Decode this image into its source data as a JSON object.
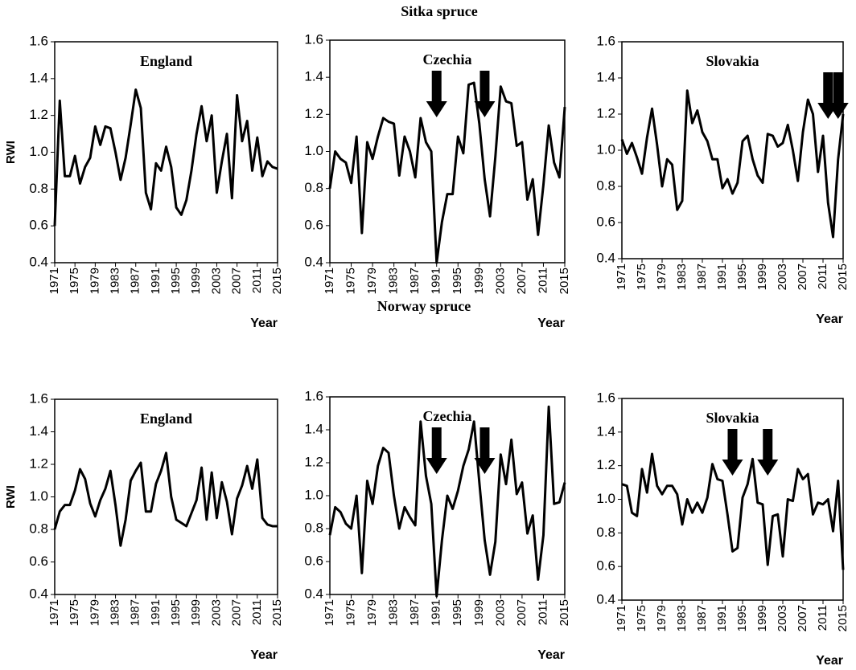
{
  "group_titles": [
    "Sitka spruce",
    "Norway spruce"
  ],
  "chart_data": [
    {
      "type": "line",
      "title": "England",
      "ylabel": "RWI",
      "xlabel": "Year",
      "color": "#000000",
      "x": [
        1971,
        1972,
        1973,
        1974,
        1975,
        1976,
        1977,
        1978,
        1979,
        1980,
        1981,
        1982,
        1983,
        1984,
        1985,
        1986,
        1987,
        1988,
        1989,
        1990,
        1991,
        1992,
        1993,
        1994,
        1995,
        1996,
        1997,
        1998,
        1999,
        2000,
        2001,
        2002,
        2003,
        2004,
        2005,
        2006,
        2007,
        2008,
        2009,
        2010,
        2011,
        2012,
        2013,
        2014,
        2015
      ],
      "values": [
        0.6,
        1.28,
        0.87,
        0.87,
        0.98,
        0.83,
        0.92,
        0.97,
        1.14,
        1.04,
        1.14,
        1.13,
        1.0,
        0.85,
        0.97,
        1.15,
        1.34,
        1.24,
        0.78,
        0.69,
        0.94,
        0.9,
        1.03,
        0.92,
        0.7,
        0.66,
        0.74,
        0.9,
        1.1,
        1.25,
        1.06,
        1.2,
        0.78,
        0.95,
        1.1,
        0.75,
        1.31,
        1.06,
        1.17,
        0.9,
        1.08,
        0.87,
        0.95,
        0.92,
        0.91
      ],
      "xlim": [
        1971,
        2015
      ],
      "xticks": [
        1971,
        1975,
        1979,
        1983,
        1987,
        1991,
        1995,
        1999,
        2003,
        2007,
        2011,
        2015
      ],
      "ylim": [
        0.4,
        1.6
      ],
      "yticks": [
        0.4,
        0.6,
        0.8,
        {
          "value": 1,
          "label": "1.0"
        },
        1.2,
        1.4,
        1.6
      ],
      "arrows": []
    },
    {
      "type": "line",
      "title": "Czechia",
      "xlabel": "Year",
      "color": "#000000",
      "x": [
        1971,
        1972,
        1973,
        1974,
        1975,
        1976,
        1977,
        1978,
        1979,
        1980,
        1981,
        1982,
        1983,
        1984,
        1985,
        1986,
        1987,
        1988,
        1989,
        1990,
        1991,
        1992,
        1993,
        1994,
        1995,
        1996,
        1997,
        1998,
        1999,
        2000,
        2001,
        2002,
        2003,
        2004,
        2005,
        2006,
        2007,
        2008,
        2009,
        2010,
        2011,
        2012,
        2013,
        2014,
        2015
      ],
      "values": [
        0.8,
        1.0,
        0.96,
        0.94,
        0.83,
        1.08,
        0.56,
        1.05,
        0.96,
        1.08,
        1.18,
        1.16,
        1.15,
        0.87,
        1.08,
        1.0,
        0.86,
        1.18,
        1.05,
        1.0,
        0.4,
        0.62,
        0.77,
        0.77,
        1.08,
        0.99,
        1.36,
        1.37,
        1.15,
        0.85,
        0.65,
        0.97,
        1.35,
        1.27,
        1.26,
        1.03,
        1.05,
        0.74,
        0.85,
        0.55,
        0.82,
        1.14,
        0.94,
        0.86,
        1.24
      ],
      "xlim": [
        1971,
        2015
      ],
      "xticks": [
        1971,
        1975,
        1979,
        1983,
        1987,
        1991,
        1995,
        1999,
        2003,
        2007,
        2011,
        2015
      ],
      "ylim": [
        0.4,
        1.6
      ],
      "yticks": [
        0.4,
        0.6,
        0.8,
        {
          "value": 1,
          "label": "1.0"
        },
        1.2,
        1.4,
        1.6
      ],
      "arrows": [
        1991,
        2000
      ]
    },
    {
      "type": "line",
      "title": "Slovakia",
      "xlabel": "Year",
      "color": "#000000",
      "x": [
        1971,
        1972,
        1973,
        1974,
        1975,
        1976,
        1977,
        1978,
        1979,
        1980,
        1981,
        1982,
        1983,
        1984,
        1985,
        1986,
        1987,
        1988,
        1989,
        1990,
        1991,
        1992,
        1993,
        1994,
        1995,
        1996,
        1997,
        1998,
        1999,
        2000,
        2001,
        2002,
        2003,
        2004,
        2005,
        2006,
        2007,
        2008,
        2009,
        2010,
        2011,
        2012,
        2013,
        2014,
        2015
      ],
      "values": [
        1.06,
        0.98,
        1.04,
        0.96,
        0.87,
        1.07,
        1.23,
        1.03,
        0.8,
        0.95,
        0.92,
        0.67,
        0.72,
        1.33,
        1.15,
        1.22,
        1.1,
        1.05,
        0.95,
        0.95,
        0.79,
        0.84,
        0.76,
        0.82,
        1.05,
        1.08,
        0.95,
        0.86,
        0.82,
        1.09,
        1.08,
        1.02,
        1.04,
        1.14,
        1.0,
        0.83,
        1.1,
        1.28,
        1.2,
        0.88,
        1.08,
        0.71,
        0.52,
        0.95,
        1.2
      ],
      "xlim": [
        1971,
        2015
      ],
      "xticks": [
        1971,
        1975,
        1979,
        1983,
        1987,
        1991,
        1995,
        1999,
        2003,
        2007,
        2011,
        2015
      ],
      "ylim": [
        0.4,
        1.6
      ],
      "yticks": [
        0.4,
        0.6,
        0.8,
        {
          "value": 1,
          "label": "1.0"
        },
        1.2,
        1.4,
        1.6
      ],
      "arrows": [
        2012,
        2014
      ]
    },
    {
      "type": "line",
      "title": "England",
      "ylabel": "RWI",
      "xlabel": "Year",
      "color": "#000000",
      "x": [
        1971,
        1972,
        1973,
        1974,
        1975,
        1976,
        1977,
        1978,
        1979,
        1980,
        1981,
        1982,
        1983,
        1984,
        1985,
        1986,
        1987,
        1988,
        1989,
        1990,
        1991,
        1992,
        1993,
        1994,
        1995,
        1996,
        1997,
        1998,
        1999,
        2000,
        2001,
        2002,
        2003,
        2004,
        2005,
        2006,
        2007,
        2008,
        2009,
        2010,
        2011,
        2012,
        2013,
        2014,
        2015
      ],
      "values": [
        0.8,
        0.91,
        0.95,
        0.95,
        1.04,
        1.17,
        1.11,
        0.96,
        0.88,
        0.98,
        1.05,
        1.16,
        0.95,
        0.7,
        0.86,
        1.1,
        1.16,
        1.21,
        0.91,
        0.91,
        1.08,
        1.16,
        1.27,
        1.0,
        0.86,
        0.84,
        0.82,
        0.9,
        0.98,
        1.18,
        0.86,
        1.15,
        0.87,
        1.09,
        0.97,
        0.77,
        0.99,
        1.07,
        1.19,
        1.05,
        1.23,
        0.87,
        0.83,
        0.82,
        0.82
      ],
      "xlim": [
        1971,
        2015
      ],
      "xticks": [
        1971,
        1975,
        1979,
        1983,
        1987,
        1991,
        1995,
        1999,
        2003,
        2007,
        2011,
        2015
      ],
      "ylim": [
        0.4,
        1.6
      ],
      "yticks": [
        0.4,
        0.6,
        0.8,
        {
          "value": 1,
          "label": "1.0"
        },
        1.2,
        1.4,
        1.6
      ],
      "arrows": []
    },
    {
      "type": "line",
      "title": "Czechia",
      "xlabel": "Year",
      "color": "#000000",
      "x": [
        1971,
        1972,
        1973,
        1974,
        1975,
        1976,
        1977,
        1978,
        1979,
        1980,
        1981,
        1982,
        1983,
        1984,
        1985,
        1986,
        1987,
        1988,
        1989,
        1990,
        1991,
        1992,
        1993,
        1994,
        1995,
        1996,
        1997,
        1998,
        1999,
        2000,
        2001,
        2002,
        2003,
        2004,
        2005,
        2006,
        2007,
        2008,
        2009,
        2010,
        2011,
        2012,
        2013,
        2014,
        2015
      ],
      "values": [
        0.76,
        0.93,
        0.9,
        0.83,
        0.8,
        1.0,
        0.53,
        1.09,
        0.95,
        1.18,
        1.29,
        1.26,
        1.0,
        0.8,
        0.93,
        0.87,
        0.82,
        1.45,
        1.12,
        0.95,
        0.39,
        0.73,
        1.0,
        0.92,
        1.03,
        1.18,
        1.28,
        1.45,
        1.08,
        0.73,
        0.52,
        0.72,
        1.25,
        1.07,
        1.34,
        1.01,
        1.08,
        0.77,
        0.88,
        0.49,
        0.76,
        1.54,
        0.95,
        0.96,
        1.08
      ],
      "xlim": [
        1971,
        2015
      ],
      "xticks": [
        1971,
        1975,
        1979,
        1983,
        1987,
        1991,
        1995,
        1999,
        2003,
        2007,
        2011,
        2015
      ],
      "ylim": [
        0.4,
        1.6
      ],
      "yticks": [
        0.4,
        0.6,
        0.8,
        {
          "value": 1,
          "label": "1.0"
        },
        1.2,
        1.4,
        1.6
      ],
      "arrows": [
        1991,
        2000
      ]
    },
    {
      "type": "line",
      "title": "Slovakia",
      "xlabel": "Year",
      "color": "#000000",
      "x": [
        1971,
        1972,
        1973,
        1974,
        1975,
        1976,
        1977,
        1978,
        1979,
        1980,
        1981,
        1982,
        1983,
        1984,
        1985,
        1986,
        1987,
        1988,
        1989,
        1990,
        1991,
        1992,
        1993,
        1994,
        1995,
        1996,
        1997,
        1998,
        1999,
        2000,
        2001,
        2002,
        2003,
        2004,
        2005,
        2006,
        2007,
        2008,
        2009,
        2010,
        2011,
        2012,
        2013,
        2014,
        2015
      ],
      "values": [
        1.09,
        1.08,
        0.92,
        0.9,
        1.18,
        1.04,
        1.27,
        1.08,
        1.03,
        1.08,
        1.08,
        1.03,
        0.85,
        1.0,
        0.92,
        0.98,
        0.92,
        1.01,
        1.21,
        1.12,
        1.11,
        0.91,
        0.69,
        0.71,
        1.01,
        1.09,
        1.24,
        0.98,
        0.97,
        0.61,
        0.9,
        0.91,
        0.66,
        1.0,
        0.99,
        1.18,
        1.12,
        1.15,
        0.91,
        0.98,
        0.97,
        1.0,
        0.81,
        1.11,
        0.58
      ],
      "xlim": [
        1971,
        2015
      ],
      "xticks": [
        1971,
        1975,
        1979,
        1983,
        1987,
        1991,
        1995,
        1999,
        2003,
        2007,
        2011,
        2015
      ],
      "ylim": [
        0.4,
        1.6
      ],
      "yticks": [
        0.4,
        0.6,
        0.8,
        {
          "value": 1,
          "label": "1.0"
        },
        1.2,
        1.4,
        1.6
      ],
      "arrows": [
        1993,
        2000
      ]
    }
  ]
}
